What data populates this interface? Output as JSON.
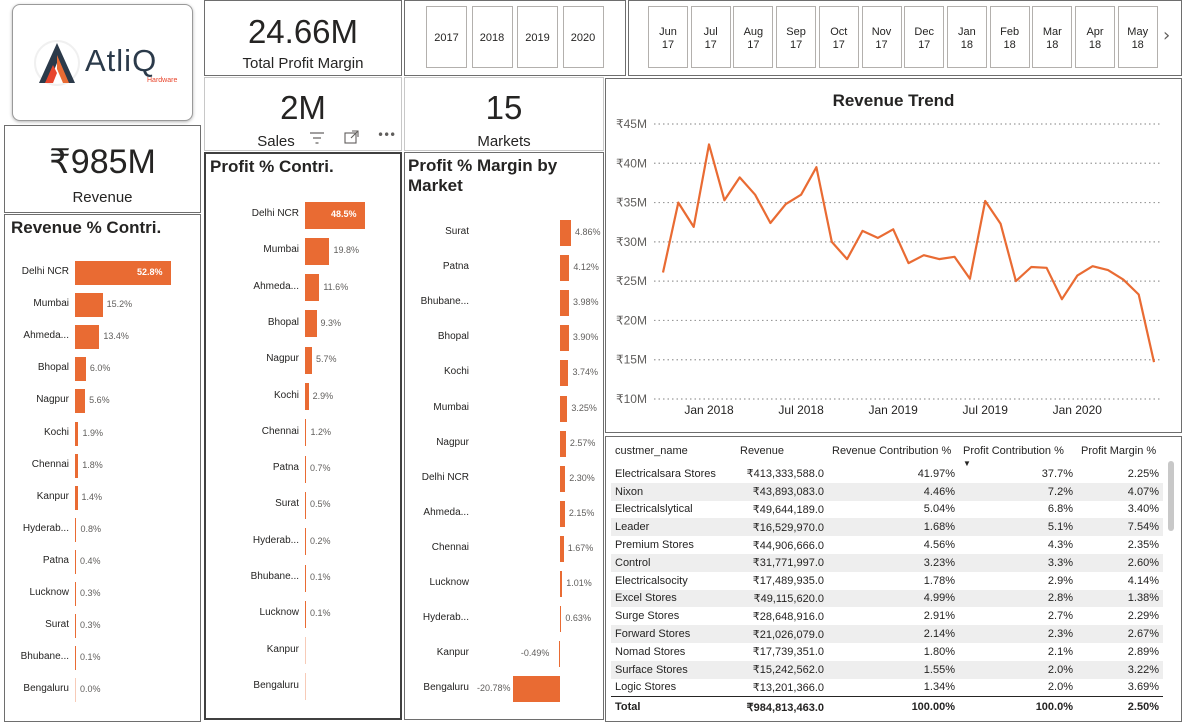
{
  "logo": {
    "brand": "AtliQ",
    "sub": "Hardware"
  },
  "kpis": {
    "profit_margin": {
      "value": "24.66M",
      "label": "Total Profit Margin"
    },
    "sales": {
      "value": "2M",
      "label": "Sales"
    },
    "markets": {
      "value": "15",
      "label": "Markets"
    },
    "revenue": {
      "value": "₹985M",
      "label": "Revenue"
    }
  },
  "years": [
    "2017",
    "2018",
    "2019",
    "2020"
  ],
  "months": [
    {
      "m": "Jun",
      "y": "17"
    },
    {
      "m": "Jul",
      "y": "17"
    },
    {
      "m": "Aug",
      "y": "17"
    },
    {
      "m": "Sep",
      "y": "17"
    },
    {
      "m": "Oct",
      "y": "17"
    },
    {
      "m": "Nov",
      "y": "17"
    },
    {
      "m": "Dec",
      "y": "17"
    },
    {
      "m": "Jan",
      "y": "18"
    },
    {
      "m": "Feb",
      "y": "18"
    },
    {
      "m": "Mar",
      "y": "18"
    },
    {
      "m": "Apr",
      "y": "18"
    },
    {
      "m": "May",
      "y": "18"
    }
  ],
  "icons": {
    "next": "chevron-right-icon",
    "filter": "filter-icon",
    "focus": "focus-mode-icon",
    "more": "more-options-icon"
  },
  "accent": "#e96b33",
  "chart_data": [
    {
      "type": "bar",
      "title": "Revenue % Contri.",
      "categories": [
        "Delhi NCR",
        "Mumbai",
        "Ahmeda...",
        "Bhopal",
        "Nagpur",
        "Kochi",
        "Chennai",
        "Kanpur",
        "Hyderab...",
        "Patna",
        "Lucknow",
        "Surat",
        "Bhubane...",
        "Bengaluru"
      ],
      "values": [
        52.8,
        15.2,
        13.4,
        6.0,
        5.6,
        1.9,
        1.8,
        1.4,
        0.8,
        0.4,
        0.3,
        0.3,
        0.1,
        0.0
      ],
      "labels": [
        "52.8%",
        "15.2%",
        "13.4%",
        "6.0%",
        "5.6%",
        "1.9%",
        "1.8%",
        "1.4%",
        "0.8%",
        "0.4%",
        "0.3%",
        "0.3%",
        "0.1%",
        "0.0%"
      ]
    },
    {
      "type": "bar",
      "title": "Profit % Contri.",
      "categories": [
        "Delhi NCR",
        "Mumbai",
        "Ahmeda...",
        "Bhopal",
        "Nagpur",
        "Kochi",
        "Chennai",
        "Patna",
        "Surat",
        "Hyderab...",
        "Bhubane...",
        "Lucknow",
        "Kanpur",
        "Bengaluru"
      ],
      "values": [
        48.5,
        19.8,
        11.6,
        9.3,
        5.7,
        2.9,
        1.2,
        0.7,
        0.5,
        0.2,
        0.1,
        0.1,
        0,
        0
      ],
      "labels": [
        "48.5%",
        "19.8%",
        "11.6%",
        "9.3%",
        "5.7%",
        "2.9%",
        "1.2%",
        "0.7%",
        "0.5%",
        "0.2%",
        "0.1%",
        "0.1%",
        "",
        ""
      ]
    },
    {
      "type": "bar",
      "title": "Profit % Margin by Market",
      "categories": [
        "Surat",
        "Patna",
        "Bhubane...",
        "Bhopal",
        "Kochi",
        "Mumbai",
        "Nagpur",
        "Delhi NCR",
        "Ahmeda...",
        "Chennai",
        "Lucknow",
        "Hyderab...",
        "Kanpur",
        "Bengaluru"
      ],
      "values": [
        4.86,
        4.12,
        3.98,
        3.9,
        3.74,
        3.25,
        2.57,
        2.3,
        2.15,
        1.67,
        1.01,
        0.63,
        -0.49,
        -20.78
      ],
      "labels": [
        "4.86%",
        "4.12%",
        "3.98%",
        "3.90%",
        "3.74%",
        "3.25%",
        "2.57%",
        "2.30%",
        "2.15%",
        "1.67%",
        "1.01%",
        "0.63%",
        "-0.49%",
        "-20.78%"
      ]
    },
    {
      "type": "line",
      "title": "Revenue Trend",
      "ylim": [
        10,
        45
      ],
      "y_ticks": [
        "₹10M",
        "₹15M",
        "₹20M",
        "₹25M",
        "₹30M",
        "₹35M",
        "₹40M",
        "₹45M"
      ],
      "x_ticks": [
        "Jan 2018",
        "Jul 2018",
        "Jan 2019",
        "Jul 2019",
        "Jan 2020"
      ],
      "x": [
        "2017-10",
        "2017-11",
        "2017-12",
        "2018-01",
        "2018-02",
        "2018-03",
        "2018-04",
        "2018-05",
        "2018-06",
        "2018-07",
        "2018-08",
        "2018-09",
        "2018-10",
        "2018-11",
        "2018-12",
        "2019-01",
        "2019-02",
        "2019-03",
        "2019-04",
        "2019-05",
        "2019-06",
        "2019-07",
        "2019-08",
        "2019-09",
        "2019-10",
        "2019-11",
        "2019-12",
        "2020-01",
        "2020-02",
        "2020-03",
        "2020-04",
        "2020-05",
        "2020-06"
      ],
      "values": [
        26.1,
        35.0,
        31.9,
        42.4,
        35.3,
        38.2,
        36.0,
        32.4,
        34.8,
        36.0,
        39.5,
        30.0,
        27.8,
        31.4,
        30.5,
        31.6,
        27.3,
        28.3,
        27.8,
        28.1,
        25.3,
        35.2,
        32.3,
        25.0,
        26.8,
        26.7,
        22.7,
        25.7,
        26.9,
        26.4,
        25.2,
        23.3,
        14.7
      ]
    }
  ],
  "table": {
    "columns": [
      "custmer_name",
      "Revenue",
      "Revenue Contribution %",
      "Profit Contribution %",
      "Profit Margin %"
    ],
    "rows": [
      [
        "Electricalsara Stores",
        "₹413,333,588.0",
        "41.97%",
        "37.7%",
        "2.25%"
      ],
      [
        "Nixon",
        "₹43,893,083.0",
        "4.46%",
        "7.2%",
        "4.07%"
      ],
      [
        "Electricalslytical",
        "₹49,644,189.0",
        "5.04%",
        "6.8%",
        "3.40%"
      ],
      [
        "Leader",
        "₹16,529,970.0",
        "1.68%",
        "5.1%",
        "7.54%"
      ],
      [
        "Premium Stores",
        "₹44,906,666.0",
        "4.56%",
        "4.3%",
        "2.35%"
      ],
      [
        "Control",
        "₹31,771,997.0",
        "3.23%",
        "3.3%",
        "2.60%"
      ],
      [
        "Electricalsocity",
        "₹17,489,935.0",
        "1.78%",
        "2.9%",
        "4.14%"
      ],
      [
        "Excel Stores",
        "₹49,115,620.0",
        "4.99%",
        "2.8%",
        "1.38%"
      ],
      [
        "Surge Stores",
        "₹28,648,916.0",
        "2.91%",
        "2.7%",
        "2.29%"
      ],
      [
        "Forward Stores",
        "₹21,026,079.0",
        "2.14%",
        "2.3%",
        "2.67%"
      ],
      [
        "Nomad Stores",
        "₹17,739,351.0",
        "1.80%",
        "2.1%",
        "2.89%"
      ],
      [
        "Surface Stores",
        "₹15,242,562.0",
        "1.55%",
        "2.0%",
        "3.22%"
      ],
      [
        "Logic Stores",
        "₹13,201,366.0",
        "1.34%",
        "2.0%",
        "3.69%"
      ]
    ],
    "total": [
      "Total",
      "₹984,813,463.0",
      "100.00%",
      "100.0%",
      "2.50%"
    ]
  }
}
